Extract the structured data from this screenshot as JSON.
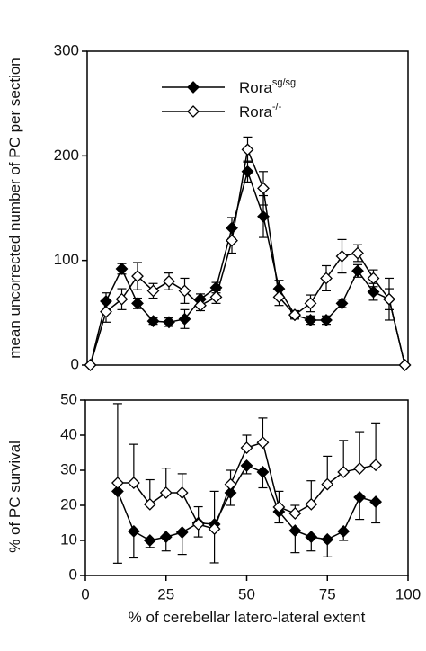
{
  "chart_data": [
    {
      "type": "line",
      "ylabel": "mean uncorrected number of PC per section",
      "x": [
        0,
        5,
        10,
        15,
        20,
        25,
        30,
        35,
        40,
        45,
        50,
        55,
        60,
        65,
        70,
        75,
        80,
        85,
        90,
        95,
        100
      ],
      "xlim": [
        -1,
        101
      ],
      "ylim": [
        0,
        300
      ],
      "yticks": [
        0,
        100,
        200,
        300
      ],
      "legend": "upper-left",
      "series": [
        {
          "name": "Rora",
          "superscript": "sg/sg",
          "color": "#000000",
          "marker": "filled",
          "error_side": "both",
          "values": [
            0,
            61,
            92,
            59,
            42,
            41,
            44,
            63,
            74,
            131,
            185,
            142,
            73,
            48,
            43,
            43,
            59,
            90,
            70,
            63,
            0
          ],
          "errors": [
            0,
            8,
            5,
            5,
            3,
            4,
            9,
            5,
            5,
            10,
            10,
            20,
            8,
            3,
            4,
            4,
            4,
            6,
            8,
            20,
            0
          ]
        },
        {
          "name": "Rora",
          "superscript": "-/-",
          "color": "#000000",
          "marker": "open",
          "error_side": "both",
          "values": [
            0,
            51,
            63,
            85,
            71,
            80,
            71,
            57,
            65,
            119,
            206,
            169,
            65,
            48,
            59,
            83,
            104,
            107,
            83,
            63,
            0
          ],
          "errors": [
            0,
            10,
            10,
            13,
            7,
            8,
            12,
            5,
            6,
            12,
            12,
            16,
            8,
            4,
            8,
            12,
            16,
            8,
            8,
            10,
            0
          ]
        }
      ]
    },
    {
      "type": "line",
      "xlabel": "% of cerebellar  latero-lateral extent",
      "ylabel": "% of PC survival",
      "x": [
        10,
        15,
        20,
        25,
        30,
        35,
        40,
        45,
        50,
        55,
        60,
        65,
        70,
        75,
        80,
        85,
        90
      ],
      "xlim": [
        0,
        100
      ],
      "xticks": [
        0,
        25,
        50,
        75,
        100
      ],
      "ylim": [
        0,
        50
      ],
      "yticks": [
        0,
        10,
        20,
        30,
        40,
        50
      ],
      "series": [
        {
          "color": "#000000",
          "marker": "filled",
          "error_side": "down",
          "values": [
            24,
            12.6,
            10,
            11,
            12.3,
            15,
            14.6,
            23.6,
            31.3,
            29.5,
            18.2,
            12.8,
            11,
            10.3,
            12.6,
            22.3,
            21
          ],
          "errors": [
            20.5,
            7.6,
            2,
            4,
            6.3,
            4,
            11,
            3.6,
            2.3,
            4.5,
            3.2,
            6.3,
            4,
            5,
            2.6,
            6.3,
            6
          ]
        },
        {
          "color": "#000000",
          "marker": "open",
          "error_side": "up",
          "values": [
            26.4,
            26.4,
            20.3,
            23.6,
            23.6,
            14.6,
            13.3,
            26,
            36.4,
            37.9,
            19.5,
            17.7,
            20.3,
            26,
            29.5,
            30.5,
            31.5
          ],
          "errors": [
            22.6,
            11,
            7,
            7,
            5.4,
            5,
            10.7,
            4,
            3.6,
            7,
            4.5,
            2.3,
            6.7,
            8,
            9,
            10.5,
            12
          ]
        }
      ]
    }
  ]
}
